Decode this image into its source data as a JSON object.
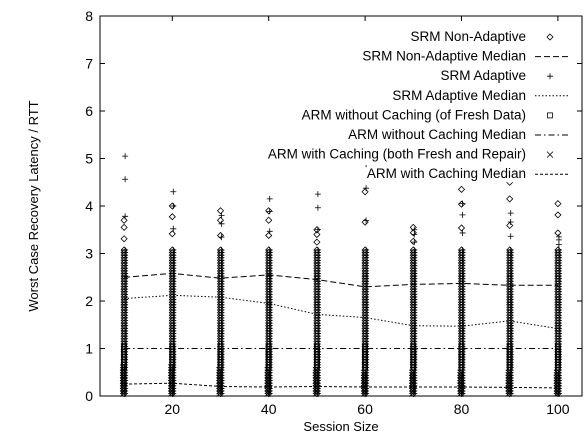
{
  "chart_data": {
    "type": "scatter",
    "xlabel": "Session Size",
    "ylabel": "Worst Case Recovery Latency / RTT",
    "xlim": [
      5,
      105
    ],
    "ylim": [
      0,
      8
    ],
    "x_ticks": [
      20,
      40,
      60,
      80,
      100
    ],
    "y_ticks": [
      0,
      1,
      2,
      3,
      4,
      5,
      6,
      7,
      8
    ],
    "grid": false,
    "legend_position": "top-right",
    "session_sizes": [
      10,
      20,
      30,
      40,
      50,
      60,
      70,
      80,
      90,
      100
    ],
    "series": [
      {
        "name": "SRM Non-Adaptive",
        "kind": "points",
        "marker": "diamond",
        "x": [
          10,
          20,
          30,
          40,
          50,
          60,
          70,
          80,
          90,
          100
        ],
        "max": [
          3.7,
          4.0,
          3.9,
          3.9,
          3.5,
          4.7,
          3.55,
          4.35,
          4.5,
          4.05
        ],
        "min": [
          0.05,
          0.05,
          0.05,
          0.05,
          0.05,
          0.05,
          0.05,
          0.05,
          0.05,
          0.05
        ]
      },
      {
        "name": "SRM Non-Adaptive Median",
        "kind": "line",
        "dash": "6,3",
        "x": [
          10,
          20,
          30,
          40,
          50,
          60,
          70,
          80,
          90,
          100
        ],
        "y": [
          2.5,
          2.58,
          2.48,
          2.55,
          2.45,
          2.3,
          2.35,
          2.37,
          2.33,
          2.33
        ]
      },
      {
        "name": "SRM Adaptive",
        "kind": "points",
        "marker": "plus",
        "x": [
          10,
          20,
          30,
          40,
          50,
          60,
          70,
          80,
          90,
          100
        ],
        "max": [
          5.05,
          4.3,
          3.8,
          4.15,
          4.25,
          4.8,
          3.5,
          4.05,
          3.85,
          3.35
        ],
        "min": [
          0.05,
          0.05,
          0.05,
          0.05,
          0.05,
          0.05,
          0.05,
          0.05,
          0.05,
          0.05
        ]
      },
      {
        "name": "SRM Adaptive Median",
        "kind": "line",
        "dash": "1.5,2",
        "x": [
          10,
          20,
          30,
          40,
          50,
          60,
          70,
          80,
          90,
          100
        ],
        "y": [
          2.05,
          2.12,
          2.08,
          1.95,
          1.72,
          1.65,
          1.48,
          1.47,
          1.58,
          1.42
        ]
      },
      {
        "name": "ARM without Caching (of Fresh Data)",
        "kind": "points",
        "marker": "square",
        "x": [
          10,
          20,
          30,
          40,
          50,
          60,
          70,
          80,
          90,
          100
        ],
        "max": [
          1.05,
          1.05,
          1.05,
          1.05,
          1.05,
          1.05,
          1.05,
          1.05,
          1.05,
          1.05
        ],
        "min": [
          0.6,
          0.6,
          0.6,
          0.6,
          0.6,
          0.6,
          0.6,
          0.6,
          0.6,
          0.6
        ]
      },
      {
        "name": "ARM without Caching Median",
        "kind": "line",
        "dash": "6,3,1.5,3",
        "x": [
          10,
          20,
          30,
          40,
          50,
          60,
          70,
          80,
          90,
          100
        ],
        "y": [
          1.0,
          1.0,
          1.0,
          1.0,
          1.0,
          1.0,
          1.0,
          1.0,
          1.0,
          1.0
        ]
      },
      {
        "name": "ARM with Caching (both Fresh and Repair)",
        "kind": "points",
        "marker": "cross",
        "x": [
          10,
          20,
          30,
          40,
          50,
          60,
          70,
          80,
          90,
          100
        ],
        "max": [
          0.6,
          0.6,
          0.55,
          0.55,
          0.55,
          0.5,
          0.5,
          0.5,
          0.5,
          0.5
        ],
        "min": [
          0.05,
          0.05,
          0.05,
          0.05,
          0.05,
          0.05,
          0.05,
          0.05,
          0.05,
          0.05
        ]
      },
      {
        "name": "ARM with Caching Median",
        "kind": "line",
        "dash": "3,2",
        "x": [
          10,
          20,
          30,
          40,
          50,
          60,
          70,
          80,
          90,
          100
        ],
        "y": [
          0.25,
          0.27,
          0.2,
          0.19,
          0.2,
          0.19,
          0.19,
          0.19,
          0.18,
          0.17
        ]
      }
    ]
  }
}
